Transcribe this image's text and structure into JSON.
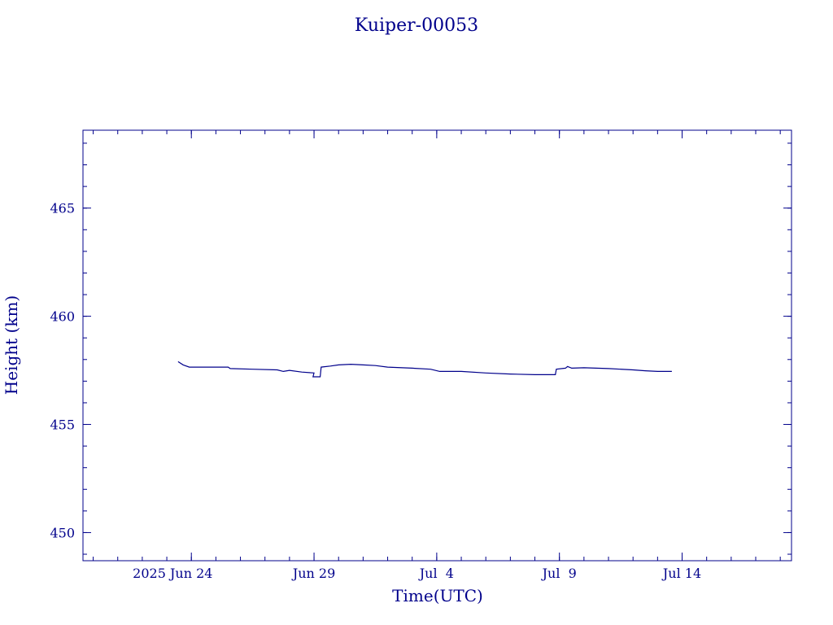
{
  "chart_data": {
    "type": "line",
    "title": "Kuiper-00053",
    "xlabel": "Time(UTC)",
    "ylabel": "Height (km)",
    "x_ticks": [
      {
        "date": "2025-06-24",
        "label": "2025 Jun 24"
      },
      {
        "date": "2025-06-29",
        "label": "Jun 29"
      },
      {
        "date": "2025-07-04",
        "label": "Jul  4"
      },
      {
        "date": "2025-07-09",
        "label": "Jul  9"
      },
      {
        "date": "2025-07-14",
        "label": "Jul 14"
      }
    ],
    "y_ticks": [
      450,
      455,
      460,
      465
    ],
    "xlim": [
      "2025-06-19T14:00",
      "2025-07-18T11:00"
    ],
    "ylim": [
      448.7,
      468.6
    ],
    "grid": false,
    "series": [
      {
        "color": "#00008b",
        "points": [
          [
            "2025-06-23T11:00",
            457.9
          ],
          [
            "2025-06-23T16:00",
            457.75
          ],
          [
            "2025-06-23T22:00",
            457.65
          ],
          [
            "2025-06-24T12:00",
            457.65
          ],
          [
            "2025-06-25T12:00",
            457.65
          ],
          [
            "2025-06-25T14:00",
            457.58
          ],
          [
            "2025-06-26T12:00",
            457.55
          ],
          [
            "2025-06-27T12:00",
            457.52
          ],
          [
            "2025-06-27T18:00",
            457.45
          ],
          [
            "2025-06-28T00:00",
            457.5
          ],
          [
            "2025-06-28T12:00",
            457.42
          ],
          [
            "2025-06-29T00:00",
            457.38
          ],
          [
            "2025-06-28T23:00",
            457.2
          ],
          [
            "2025-06-29T06:00",
            457.2
          ],
          [
            "2025-06-29T07:00",
            457.65
          ],
          [
            "2025-06-29T16:00",
            457.7
          ],
          [
            "2025-06-30T00:00",
            457.75
          ],
          [
            "2025-06-30T12:00",
            457.78
          ],
          [
            "2025-07-01T00:00",
            457.75
          ],
          [
            "2025-07-01T12:00",
            457.72
          ],
          [
            "2025-07-02T00:00",
            457.65
          ],
          [
            "2025-07-03T00:00",
            457.6
          ],
          [
            "2025-07-03T18:00",
            457.55
          ],
          [
            "2025-07-04T03:00",
            457.45
          ],
          [
            "2025-07-05T00:00",
            457.45
          ],
          [
            "2025-07-06T00:00",
            457.38
          ],
          [
            "2025-07-07T00:00",
            457.33
          ],
          [
            "2025-07-08T00:00",
            457.3
          ],
          [
            "2025-07-08T20:00",
            457.3
          ],
          [
            "2025-07-08T21:00",
            457.55
          ],
          [
            "2025-07-09T06:00",
            457.6
          ],
          [
            "2025-07-09T08:00",
            457.68
          ],
          [
            "2025-07-09T12:00",
            457.6
          ],
          [
            "2025-07-10T00:00",
            457.62
          ],
          [
            "2025-07-11T00:00",
            457.58
          ],
          [
            "2025-07-12T00:00",
            457.52
          ],
          [
            "2025-07-12T12:00",
            457.48
          ],
          [
            "2025-07-13T00:00",
            457.45
          ],
          [
            "2025-07-13T14:00",
            457.45
          ]
        ]
      }
    ]
  }
}
